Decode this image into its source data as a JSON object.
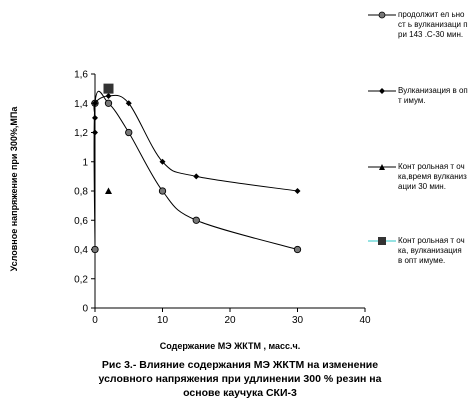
{
  "chart_data": {
    "type": "line",
    "xlabel": "Содержание МЭ ЖКТМ , масс.ч.",
    "ylabel": "Условное напряжение при 300%,МПа",
    "xlim": [
      0,
      40
    ],
    "ylim": [
      0,
      1.6
    ],
    "xticks": [
      "0",
      "10",
      "20",
      "30",
      "40"
    ],
    "yticks": [
      "0",
      "0,2",
      "0,4",
      "0,6",
      "0,8",
      "1",
      "1,2",
      "1,4",
      "1,6"
    ],
    "grid": false,
    "legend_position": "right",
    "series": [
      {
        "name": "продолжит ел ьност ь вулканизаци при 143 .С-30 мин.",
        "marker": "circle",
        "line": true,
        "color": "#000000",
        "x": [
          0,
          0,
          2,
          5,
          10,
          15,
          30
        ],
        "y": [
          0.4,
          1.4,
          1.4,
          1.2,
          0.8,
          0.6,
          0.4
        ]
      },
      {
        "name": "Вулканизация в опт имум.",
        "marker": "diamond",
        "line": true,
        "color": "#000000",
        "x": [
          0,
          0,
          0,
          2,
          5,
          10,
          15,
          30
        ],
        "y": [
          1.2,
          1.3,
          1.4,
          1.45,
          1.4,
          1.0,
          0.9,
          0.8
        ]
      },
      {
        "name": "Конт рольная т очка,время вулканизации 30 мин.",
        "marker": "triangle",
        "line": false,
        "color": "#000000",
        "x": [
          2
        ],
        "y": [
          0.8
        ]
      },
      {
        "name": "Конт рольная т очка, вулканизация в опт имуме.",
        "marker": "square",
        "line": false,
        "color": "#333333",
        "legend_line_color": "#2ec7c7",
        "x": [
          2
        ],
        "y": [
          1.5
        ]
      }
    ]
  },
  "caption": {
    "line1": "Рис 3.- Влияние содержания МЭ ЖКТМ на изменение",
    "line2": "условного напряжения при удлинении 300 % резин на",
    "line3": "основе каучука СКИ-3"
  }
}
